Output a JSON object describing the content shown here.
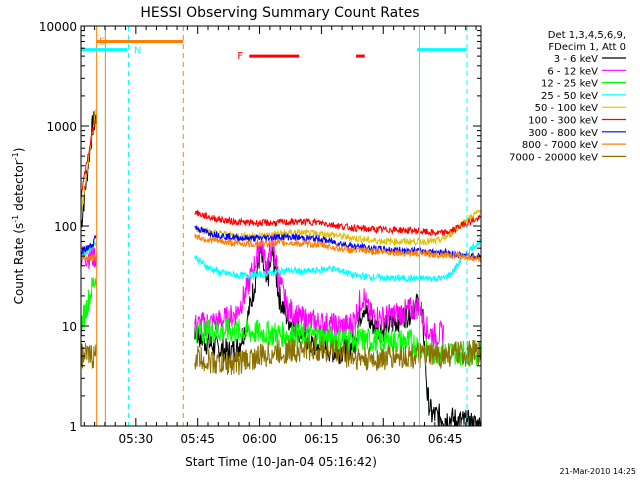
{
  "chart_data": {
    "type": "line",
    "title": "HESSI Observing Summary Count Rates",
    "xlabel": "Start Time (10-Jan-04 05:16:42)",
    "ylabel": "Count Rate (s",
    "ylabel_sup": "-1",
    "ylabel_mid": " detector",
    "ylabel_sup2": "-1",
    "ylabel_end": ")",
    "yscale": "log",
    "ylim": [
      1,
      10000
    ],
    "xlim_minutes": [
      0,
      97
    ],
    "x_ticks": [
      {
        "label": "05:30",
        "min": 13.3
      },
      {
        "label": "05:45",
        "min": 28.3
      },
      {
        "label": "06:00",
        "min": 43.3
      },
      {
        "label": "06:15",
        "min": 58.3
      },
      {
        "label": "06:30",
        "min": 73.3
      },
      {
        "label": "06:45",
        "min": 88.3
      }
    ],
    "y_ticks": [
      {
        "label": "1",
        "v": 1
      },
      {
        "label": "10",
        "v": 10
      },
      {
        "label": "100",
        "v": 100
      },
      {
        "label": "1000",
        "v": 1000
      },
      {
        "label": "10000",
        "v": 10000
      }
    ],
    "legend_header": [
      "Det 1,3,4,5,6,9,",
      "FDecim 1, Att 0"
    ],
    "legend_position": "right",
    "series": [
      {
        "name": "3 - 6 keV",
        "color": "#000000",
        "pts": [
          [
            0,
            100
          ],
          [
            2.8,
            1000
          ],
          [
            3.7,
            1200
          ],
          [
            27.5,
            9
          ],
          [
            30,
            7
          ],
          [
            33,
            6
          ],
          [
            36,
            5.5
          ],
          [
            38,
            6
          ],
          [
            40,
            10
          ],
          [
            42,
            25
          ],
          [
            43.5,
            55
          ],
          [
            45,
            25
          ],
          [
            46.5,
            55
          ],
          [
            48,
            20
          ],
          [
            50,
            12
          ],
          [
            53,
            9
          ],
          [
            56,
            6.5
          ],
          [
            59,
            6
          ],
          [
            62,
            5.5
          ],
          [
            65,
            6
          ],
          [
            66.5,
            7
          ],
          [
            67.5,
            12
          ],
          [
            68.5,
            16
          ],
          [
            70,
            11
          ],
          [
            73,
            9
          ],
          [
            76,
            11
          ],
          [
            79,
            13
          ],
          [
            82,
            17
          ],
          [
            83,
            10
          ],
          [
            84,
            2
          ],
          [
            85,
            1.3
          ],
          [
            97,
            1
          ]
        ]
      },
      {
        "name": "6 - 12 keV",
        "color": "#ff00ff",
        "pts": [
          [
            0,
            50
          ],
          [
            3.7,
            50
          ],
          [
            27.5,
            10
          ],
          [
            30,
            10.5
          ],
          [
            33,
            11
          ],
          [
            36,
            12
          ],
          [
            38,
            14
          ],
          [
            40,
            22
          ],
          [
            42,
            40
          ],
          [
            43.5,
            70
          ],
          [
            45,
            40
          ],
          [
            46.5,
            65
          ],
          [
            48,
            30
          ],
          [
            50,
            15
          ],
          [
            53,
            12
          ],
          [
            56,
            11
          ],
          [
            59,
            10.5
          ],
          [
            62,
            10
          ],
          [
            65,
            10
          ],
          [
            66.5,
            12
          ],
          [
            67.5,
            17
          ],
          [
            68.5,
            20
          ],
          [
            70,
            13
          ],
          [
            73,
            12
          ],
          [
            76,
            13
          ],
          [
            79,
            14
          ],
          [
            82,
            16
          ],
          [
            84,
            9
          ],
          [
            86,
            8
          ],
          [
            88,
            8.5
          ]
        ]
      },
      {
        "name": "12 - 25 keV",
        "color": "#00ff00",
        "pts": [
          [
            0,
            10
          ],
          [
            2.8,
            25
          ],
          [
            3.7,
            32
          ],
          [
            27.5,
            9
          ],
          [
            40,
            8.8
          ],
          [
            45,
            8.5
          ],
          [
            50,
            8.2
          ],
          [
            55,
            8
          ],
          [
            60,
            7.6
          ],
          [
            70,
            7.2
          ],
          [
            80,
            7
          ],
          [
            84,
            5.5
          ],
          [
            97,
            5.4
          ]
        ]
      },
      {
        "name": "25 - 50 keV",
        "color": "#00ffff",
        "pts": [
          [
            0,
            48
          ],
          [
            3.7,
            70
          ],
          [
            27.5,
            50
          ],
          [
            29,
            44
          ],
          [
            31,
            38
          ],
          [
            34,
            34
          ],
          [
            38,
            32
          ],
          [
            42,
            32
          ],
          [
            46,
            34
          ],
          [
            50,
            36
          ],
          [
            54,
            35
          ],
          [
            58,
            36
          ],
          [
            60,
            38
          ],
          [
            64,
            35
          ],
          [
            66,
            32
          ],
          [
            70,
            31
          ],
          [
            75,
            30
          ],
          [
            80,
            30
          ],
          [
            86,
            30
          ],
          [
            88,
            30
          ],
          [
            90,
            34
          ],
          [
            92,
            45
          ],
          [
            95,
            62
          ],
          [
            97,
            70
          ]
        ]
      },
      {
        "name": "50 - 100 keV",
        "color": "#e0c000",
        "pts": [
          [
            0,
            130
          ],
          [
            2.8,
            900
          ],
          [
            3.7,
            1500
          ],
          [
            27.5,
            95
          ],
          [
            32,
            86
          ],
          [
            38,
            80
          ],
          [
            44,
            80
          ],
          [
            48,
            84
          ],
          [
            52,
            86
          ],
          [
            56,
            84
          ],
          [
            60,
            83
          ],
          [
            64,
            78
          ],
          [
            70,
            72
          ],
          [
            75,
            70
          ],
          [
            80,
            70
          ],
          [
            86,
            70
          ],
          [
            88,
            75
          ],
          [
            90,
            85
          ],
          [
            93,
            110
          ],
          [
            96,
            135
          ],
          [
            97,
            140
          ]
        ]
      },
      {
        "name": "100 - 300 keV",
        "color": "#ff0000",
        "pts": [
          [
            0,
            200
          ],
          [
            2.8,
            900
          ],
          [
            3.7,
            1200
          ],
          [
            27.5,
            140
          ],
          [
            29,
            130
          ],
          [
            32,
            120
          ],
          [
            36,
            112
          ],
          [
            40,
            108
          ],
          [
            44,
            107
          ],
          [
            48,
            108
          ],
          [
            52,
            110
          ],
          [
            56,
            110
          ],
          [
            60,
            105
          ],
          [
            64,
            98
          ],
          [
            68,
            94
          ],
          [
            72,
            92
          ],
          [
            76,
            92
          ],
          [
            80,
            90
          ],
          [
            86,
            85
          ],
          [
            88,
            85
          ],
          [
            90,
            90
          ],
          [
            92,
            100
          ],
          [
            94,
            110
          ],
          [
            97,
            120
          ]
        ]
      },
      {
        "name": "300 - 800 keV",
        "color": "#0000ff",
        "pts": [
          [
            0,
            55
          ],
          [
            2.8,
            65
          ],
          [
            3.7,
            85
          ],
          [
            27.5,
            98
          ],
          [
            30,
            88
          ],
          [
            34,
            80
          ],
          [
            38,
            76
          ],
          [
            42,
            75
          ],
          [
            46,
            77
          ],
          [
            50,
            78
          ],
          [
            54,
            76
          ],
          [
            58,
            74
          ],
          [
            62,
            68
          ],
          [
            66,
            63
          ],
          [
            70,
            60
          ],
          [
            74,
            58
          ],
          [
            78,
            57
          ],
          [
            82,
            56
          ],
          [
            86,
            55
          ],
          [
            88,
            55
          ],
          [
            91,
            52
          ],
          [
            94,
            50
          ],
          [
            97,
            50
          ]
        ]
      },
      {
        "name": "800 - 7000 keV",
        "color": "#ff8000",
        "pts": [
          [
            0,
            48
          ],
          [
            3.7,
            48
          ],
          [
            27.5,
            80
          ],
          [
            30,
            74
          ],
          [
            34,
            70
          ],
          [
            38,
            67
          ],
          [
            42,
            66
          ],
          [
            46,
            67
          ],
          [
            50,
            68
          ],
          [
            54,
            66
          ],
          [
            58,
            65
          ],
          [
            62,
            60
          ],
          [
            66,
            57
          ],
          [
            70,
            56
          ],
          [
            74,
            55
          ],
          [
            78,
            54
          ],
          [
            82,
            53
          ],
          [
            86,
            52
          ],
          [
            88,
            52
          ],
          [
            92,
            50
          ],
          [
            95,
            48
          ],
          [
            97,
            48
          ]
        ]
      },
      {
        "name": "7000 - 20000 keV",
        "color": "#8b7000",
        "pts": [
          [
            0,
            5
          ],
          [
            3.7,
            5
          ],
          [
            27.5,
            5
          ],
          [
            30,
            4.5
          ],
          [
            34,
            4.2
          ],
          [
            38,
            4.3
          ],
          [
            42,
            4.8
          ],
          [
            46,
            5.3
          ],
          [
            50,
            5.6
          ],
          [
            54,
            5.8
          ],
          [
            58,
            5.9
          ],
          [
            62,
            5.6
          ],
          [
            66,
            4.8
          ],
          [
            70,
            4.6
          ],
          [
            74,
            4.8
          ],
          [
            78,
            5
          ],
          [
            82,
            5
          ],
          [
            86,
            5
          ],
          [
            90,
            5.2
          ],
          [
            97,
            5.4
          ]
        ]
      }
    ],
    "annotations": {
      "s": {
        "label": "S",
        "color": "#ff8000",
        "min_start": 3.7,
        "min_end": 24.8,
        "v": 7000
      },
      "n": {
        "label": "N",
        "color": "#00ffff",
        "min_start": 0,
        "min_end": 11.3,
        "v": 5800,
        "min_start2": 81.5,
        "min_end2": 93.5,
        "v2": 5800
      },
      "f": {
        "label": "F",
        "color": "#ff0000",
        "min_start": 40.8,
        "min_end": 52.9,
        "min_start2": 66.7,
        "min_end2": 68.8,
        "v": 5000
      }
    },
    "vlines": [
      {
        "min": 3.8,
        "color": "#ff8000",
        "dash": false
      },
      {
        "min": 5.9,
        "color": "#ff8000",
        "dash": false
      },
      {
        "min": 11.5,
        "color": "#00ffff",
        "dash": true
      },
      {
        "min": 24.8,
        "color": "#ff8000",
        "dash": true
      },
      {
        "min": 82.1,
        "color": "#00ffff",
        "dash": false
      },
      {
        "min": 93.6,
        "color": "#00ffff",
        "dash": true
      }
    ],
    "gaps": [
      {
        "min_start": 3.8,
        "min_end": 27.5
      }
    ],
    "timestamp": "21-Mar-2010 14:25"
  }
}
